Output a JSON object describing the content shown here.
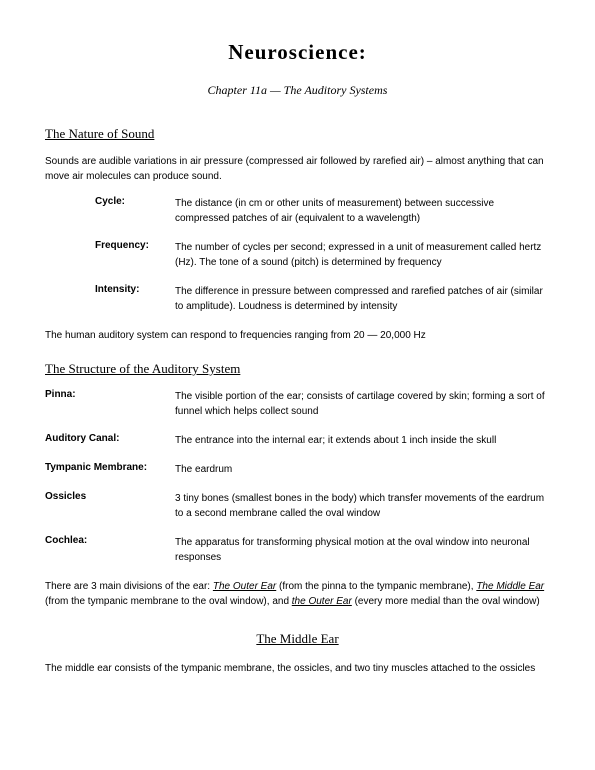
{
  "title": "Neuroscience:",
  "chapter": "Chapter 11a — The Auditory Systems",
  "section1": {
    "heading": "The Nature of Sound",
    "intro": "Sounds are audible variations in air pressure (compressed air followed by rarefied air) – almost anything that can move air molecules can produce sound.",
    "defs": [
      {
        "term": "Cycle:",
        "desc": "The distance (in cm or other units of measurement) between successive compressed patches of air (equivalent to a wavelength)"
      },
      {
        "term": "Frequency:",
        "desc": "The number of cycles per second; expressed in a unit of measurement called hertz (Hz). The tone of a sound (pitch) is determined by frequency"
      },
      {
        "term": "Intensity:",
        "desc": "The difference in pressure between compressed and rarefied patches of air (similar to amplitude). Loudness is determined by intensity"
      }
    ],
    "closing": "The human auditory system can respond to frequencies ranging from 20 — 20,000 Hz"
  },
  "section2": {
    "heading": "The Structure of the Auditory System",
    "defs": [
      {
        "term": "Pinna:",
        "desc": "The visible portion of the ear; consists of cartilage covered by skin; forming a sort of funnel which helps collect sound"
      },
      {
        "term": "Auditory Canal:",
        "desc": "The entrance into the internal ear; it extends about 1 inch inside the skull"
      },
      {
        "term": "Tympanic Membrane:",
        "desc": "The eardrum"
      },
      {
        "term": "Ossicles",
        "desc": "3 tiny bones (smallest bones in the body) which transfer movements of the eardrum to a second membrane called the oval window"
      },
      {
        "term": "Cochlea:",
        "desc": "The apparatus for transforming physical motion at the oval window into neuronal responses"
      }
    ],
    "closing_pre": "There are 3 main divisions of the ear: ",
    "closing_i1": "The Outer Ear",
    "closing_mid1": " (from the pinna to the tympanic membrane), ",
    "closing_i2": "The Middle Ear",
    "closing_mid2": " (from the tympanic membrane to the oval window), and ",
    "closing_i3": "the Outer Ear",
    "closing_post": " (every more medial than the oval window)"
  },
  "section3": {
    "heading": "The Middle Ear",
    "body": "The middle ear consists of the tympanic membrane, the ossicles, and two tiny muscles attached to the ossicles"
  }
}
